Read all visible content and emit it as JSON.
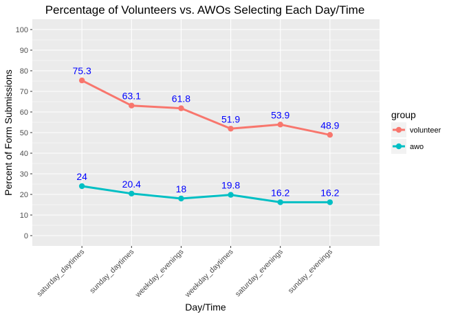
{
  "chart_data": {
    "type": "line",
    "title": "Percentage of Volunteers vs. AWOs Selecting Each Day/Time",
    "xlabel": "Day/Time",
    "ylabel": "Percent of Form Submissions",
    "categories": [
      "saturday_daytimes",
      "sunday_daytimes",
      "weekday_evenings",
      "weekday_daytimes",
      "saturday_evenings",
      "sunday_evenings"
    ],
    "ylim": [
      -5,
      105
    ],
    "yticks": [
      0,
      10,
      20,
      30,
      40,
      50,
      60,
      70,
      80,
      90,
      100
    ],
    "grid": true,
    "legend": {
      "title": "group",
      "position": "right"
    },
    "series": [
      {
        "name": "volunteer",
        "color": "#F8766D",
        "values": [
          75.3,
          63.1,
          61.8,
          51.9,
          53.9,
          48.9
        ],
        "labels": [
          "75.3",
          "63.1",
          "61.8",
          "51.9",
          "53.9",
          "48.9"
        ]
      },
      {
        "name": "awo",
        "color": "#00BFC4",
        "values": [
          24,
          20.4,
          18,
          19.8,
          16.2,
          16.2
        ],
        "labels": [
          "24",
          "20.4",
          "18",
          "19.8",
          "16.2",
          "16.2"
        ]
      }
    ],
    "label_color": "#0000FF",
    "panel_color": "#EBEBEB",
    "grid_color": "#FFFFFF"
  }
}
